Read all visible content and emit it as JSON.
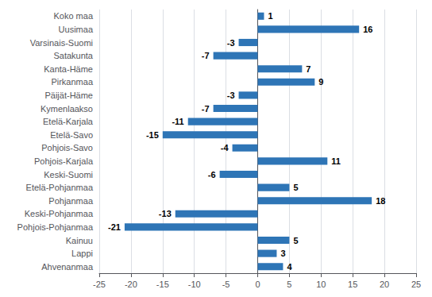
{
  "chart_data": {
    "type": "bar",
    "orientation": "horizontal",
    "categories": [
      "Ahvenanmaa",
      "Lappi",
      "Kainuu",
      "Pohjois-Pohjanmaa",
      "Keski-Pohjanmaa",
      "Pohjanmaa",
      "Etelä-Pohjanmaa",
      "Keski-Suomi",
      "Pohjois-Karjala",
      "Pohjois-Savo",
      "Etelä-Savo",
      "Etelä-Karjala",
      "Kymenlaakso",
      "Päijät-Häme",
      "Pirkanmaa",
      "Kanta-Häme",
      "Satakunta",
      "Varsinais-Suomi",
      "Uusimaa",
      "Koko maa"
    ],
    "values": [
      4,
      3,
      5,
      -21,
      -13,
      18,
      5,
      -6,
      11,
      -4,
      -15,
      -11,
      -7,
      -3,
      9,
      7,
      -7,
      -3,
      16,
      1
    ],
    "color": "#2e75b6",
    "xlim": [
      -25,
      25
    ],
    "xticks": [
      -25,
      -20,
      -15,
      -10,
      -5,
      0,
      5,
      10,
      15,
      20,
      25
    ],
    "grid": true,
    "data_labels": true
  }
}
